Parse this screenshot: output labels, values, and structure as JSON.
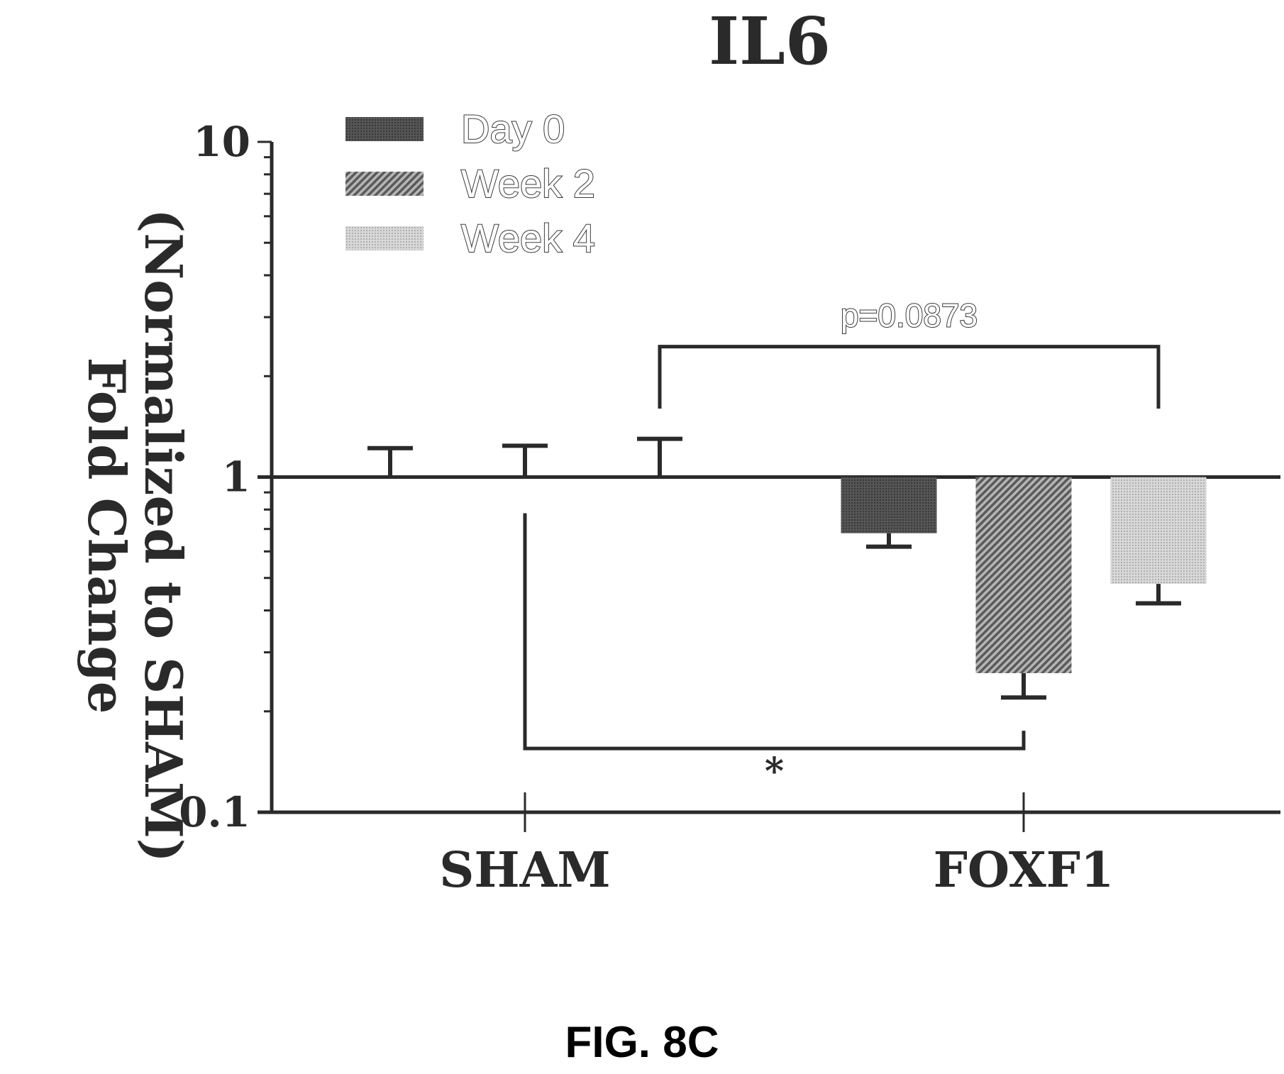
{
  "chart_data": {
    "type": "bar",
    "title": "IL6",
    "ylabel_line1": "Fold Change",
    "ylabel_line2": "(Normalized to SHAM)",
    "xlabel": "",
    "yscale": "log",
    "ylim": [
      0.1,
      10
    ],
    "yticks": [
      "0.1",
      "1",
      "10"
    ],
    "baseline": 1,
    "categories": [
      "SHAM",
      "FOXF1"
    ],
    "legend_position": "top-left",
    "series": [
      {
        "name": "Day 0",
        "pattern": "dark",
        "values": [
          1.0,
          0.68
        ],
        "errors": [
          0.22,
          0.06
        ]
      },
      {
        "name": "Week 2",
        "pattern": "hatch",
        "values": [
          1.0,
          0.26
        ],
        "errors": [
          0.24,
          0.04
        ]
      },
      {
        "name": "Week 4",
        "pattern": "light",
        "values": [
          1.0,
          0.48
        ],
        "errors": [
          0.3,
          0.06
        ]
      }
    ],
    "annotations": [
      {
        "text": "p=0.0873",
        "from_category": 0,
        "from_series": 2,
        "to_category": 1,
        "to_series": 2,
        "y": 2.45,
        "leg_to": 1.6,
        "position": "above"
      },
      {
        "text": "*",
        "from_category": 0,
        "from_series": 1,
        "to_category": 1,
        "to_series": 1,
        "y": 0.155,
        "leg_from": 0.78,
        "leg_to": 0.175,
        "position": "below"
      }
    ],
    "colors": {
      "dark": "#555555",
      "hatch": "#8a8a8a",
      "light": "#c8c8c8",
      "axis": "#2a2a2a"
    }
  },
  "figure_label": "FIG. 8C"
}
